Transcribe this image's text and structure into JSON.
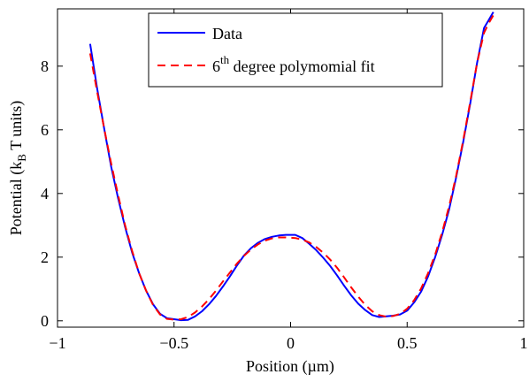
{
  "chart_data": {
    "type": "line",
    "title": "",
    "xlabel": "Position (µm)",
    "ylabel": {
      "main": "Potential (k",
      "sub": "B",
      "rest": " T units)"
    },
    "xlim": [
      -1,
      1
    ],
    "ylim": [
      -0.2,
      9.8
    ],
    "xticks": [
      -1,
      -0.5,
      0,
      0.5,
      1
    ],
    "xtick_labels": [
      "−1",
      "−0.5",
      "0",
      "0.5",
      "1"
    ],
    "yticks": [
      0,
      2,
      4,
      6,
      8
    ],
    "ytick_labels": [
      "0",
      "2",
      "4",
      "6",
      "8"
    ],
    "grid": false,
    "legend_position": "top-center",
    "legend": [
      {
        "label": "Data",
        "sup": "",
        "rest": ""
      },
      {
        "label": "6",
        "sup": "th",
        "rest": " degree polymomial fit"
      }
    ],
    "series": [
      {
        "name": "Data",
        "color": "#0000ff",
        "style": "solid",
        "x": [
          -0.86,
          -0.83,
          -0.8,
          -0.77,
          -0.74,
          -0.71,
          -0.68,
          -0.65,
          -0.62,
          -0.59,
          -0.56,
          -0.53,
          -0.5,
          -0.47,
          -0.44,
          -0.41,
          -0.38,
          -0.35,
          -0.32,
          -0.29,
          -0.26,
          -0.23,
          -0.2,
          -0.17,
          -0.14,
          -0.11,
          -0.08,
          -0.05,
          -0.02,
          0.0,
          0.02,
          0.05,
          0.08,
          0.11,
          0.14,
          0.17,
          0.2,
          0.23,
          0.26,
          0.29,
          0.32,
          0.35,
          0.38,
          0.41,
          0.44,
          0.47,
          0.5,
          0.53,
          0.56,
          0.59,
          0.62,
          0.65,
          0.68,
          0.71,
          0.74,
          0.77,
          0.8,
          0.83,
          0.85,
          0.87
        ],
        "y": [
          8.7,
          7.3,
          6.05,
          4.85,
          3.85,
          2.95,
          2.15,
          1.5,
          0.95,
          0.52,
          0.22,
          0.08,
          0.05,
          0.02,
          0.03,
          0.14,
          0.3,
          0.52,
          0.78,
          1.08,
          1.4,
          1.74,
          2.05,
          2.28,
          2.45,
          2.57,
          2.64,
          2.68,
          2.7,
          2.7,
          2.7,
          2.6,
          2.42,
          2.22,
          1.98,
          1.72,
          1.42,
          1.1,
          0.8,
          0.54,
          0.34,
          0.18,
          0.12,
          0.14,
          0.16,
          0.2,
          0.32,
          0.58,
          0.92,
          1.4,
          2.0,
          2.7,
          3.5,
          4.5,
          5.6,
          6.8,
          8.1,
          9.2,
          9.45,
          9.7
        ]
      },
      {
        "name": "6th degree polymomial fit",
        "color": "#ff0000",
        "style": "dashed",
        "x": [
          -0.86,
          -0.83,
          -0.8,
          -0.77,
          -0.74,
          -0.71,
          -0.68,
          -0.65,
          -0.62,
          -0.59,
          -0.56,
          -0.53,
          -0.5,
          -0.47,
          -0.44,
          -0.41,
          -0.38,
          -0.35,
          -0.32,
          -0.29,
          -0.26,
          -0.23,
          -0.2,
          -0.17,
          -0.14,
          -0.11,
          -0.08,
          -0.05,
          -0.02,
          0.0,
          0.02,
          0.05,
          0.08,
          0.11,
          0.14,
          0.17,
          0.2,
          0.23,
          0.26,
          0.29,
          0.32,
          0.35,
          0.38,
          0.41,
          0.44,
          0.47,
          0.5,
          0.53,
          0.56,
          0.59,
          0.62,
          0.65,
          0.68,
          0.71,
          0.74,
          0.77,
          0.8,
          0.83,
          0.85,
          0.87
        ],
        "y": [
          8.4,
          7.2,
          6.05,
          4.95,
          3.95,
          3.0,
          2.2,
          1.5,
          0.95,
          0.5,
          0.2,
          0.06,
          0.04,
          0.05,
          0.12,
          0.26,
          0.45,
          0.68,
          0.95,
          1.24,
          1.52,
          1.8,
          2.04,
          2.24,
          2.4,
          2.52,
          2.59,
          2.62,
          2.62,
          2.61,
          2.6,
          2.55,
          2.46,
          2.32,
          2.14,
          1.92,
          1.66,
          1.36,
          1.05,
          0.76,
          0.5,
          0.3,
          0.18,
          0.13,
          0.15,
          0.22,
          0.38,
          0.65,
          1.02,
          1.5,
          2.08,
          2.78,
          3.6,
          4.55,
          5.65,
          6.85,
          8.1,
          9.05,
          9.35,
          9.6
        ]
      }
    ]
  }
}
